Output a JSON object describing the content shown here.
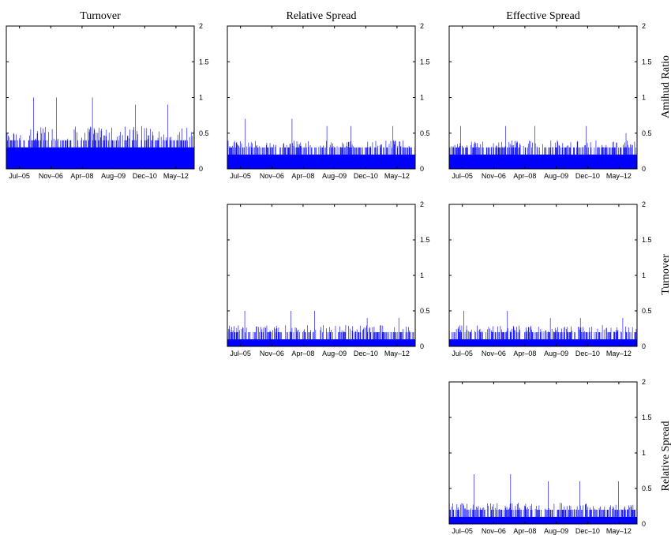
{
  "figure": {
    "column_titles": [
      "Turnover",
      "Relative Spread",
      "Effective Spread"
    ],
    "row_labels": [
      "Amihud Ratio",
      "Turnover",
      "Relative Spread"
    ],
    "bar_color": "#0000ff"
  },
  "chart_data": [
    {
      "type": "bar",
      "row_label": "Amihud Ratio",
      "column_title": "Turnover",
      "xtick_labels": [
        "Jul–05",
        "Nov–06",
        "Apr–08",
        "Aug–09",
        "Dec–10",
        "May–12"
      ],
      "ytick_labels": [
        "0",
        "0.5",
        "1",
        "1.5",
        "2"
      ],
      "ylim": [
        0,
        2
      ],
      "n_bars": 350,
      "baseline_level": 0.3,
      "typical_range": [
        0.4,
        0.6
      ],
      "peaks": [
        1.0,
        1.0,
        1.0,
        0.9,
        0.9
      ],
      "color": "#0000ff"
    },
    {
      "type": "bar",
      "row_label": "Amihud Ratio",
      "column_title": "Relative Spread",
      "xtick_labels": [
        "Jul–05",
        "Nov–06",
        "Apr–08",
        "Aug–09",
        "Dec–10",
        "May–12"
      ],
      "ytick_labels": [
        "0",
        "0.5",
        "1",
        "1.5",
        "2"
      ],
      "ylim": [
        0,
        2
      ],
      "n_bars": 350,
      "baseline_level": 0.2,
      "typical_range": [
        0.3,
        0.4
      ],
      "peaks": [
        0.7,
        0.7,
        0.6,
        0.6,
        0.6
      ],
      "color": "#0000ff"
    },
    {
      "type": "bar",
      "row_label": "Amihud Ratio",
      "column_title": "Effective Spread",
      "xtick_labels": [
        "Jul–05",
        "Nov–06",
        "Apr–08",
        "Aug–09",
        "Dec–10",
        "May–12"
      ],
      "ytick_labels": [
        "0",
        "0.5",
        "1",
        "1.5",
        "2"
      ],
      "ylim": [
        0,
        2
      ],
      "n_bars": 350,
      "baseline_level": 0.2,
      "typical_range": [
        0.3,
        0.4
      ],
      "peaks": [
        0.6,
        0.6,
        0.6,
        0.6,
        0.5
      ],
      "color": "#0000ff"
    },
    {
      "type": "bar",
      "row_label": "Turnover",
      "column_title": "Relative Spread",
      "xtick_labels": [
        "Jul–05",
        "Nov–06",
        "Apr–08",
        "Aug–09",
        "Dec–10",
        "May–12"
      ],
      "ytick_labels": [
        "0",
        "0.5",
        "1",
        "1.5",
        "2"
      ],
      "ylim": [
        0,
        2
      ],
      "n_bars": 350,
      "baseline_level": 0.1,
      "typical_range": [
        0.2,
        0.3
      ],
      "peaks": [
        0.5,
        0.5,
        0.5,
        0.4,
        0.4
      ],
      "color": "#0000ff"
    },
    {
      "type": "bar",
      "row_label": "Turnover",
      "column_title": "Effective Spread",
      "xtick_labels": [
        "Jul–05",
        "Nov–06",
        "Apr–08",
        "Aug–09",
        "Dec–10",
        "May–12"
      ],
      "ytick_labels": [
        "0",
        "0.5",
        "1",
        "1.5",
        "2"
      ],
      "ylim": [
        0,
        2
      ],
      "n_bars": 350,
      "baseline_level": 0.1,
      "typical_range": [
        0.2,
        0.3
      ],
      "peaks": [
        0.5,
        0.5,
        0.4,
        0.4,
        0.4
      ],
      "color": "#0000ff"
    },
    {
      "type": "bar",
      "row_label": "Relative Spread",
      "column_title": "Effective Spread",
      "xtick_labels": [
        "Jul–05",
        "Nov–06",
        "Apr–08",
        "Aug–09",
        "Dec–10",
        "May–12"
      ],
      "ytick_labels": [
        "0",
        "0.5",
        "1",
        "1.5",
        "2"
      ],
      "ylim": [
        0,
        2
      ],
      "n_bars": 350,
      "baseline_level": 0.1,
      "typical_range": [
        0.2,
        0.3
      ],
      "peaks": [
        0.7,
        0.7,
        0.6,
        0.6,
        0.6
      ],
      "color": "#0000ff"
    }
  ]
}
